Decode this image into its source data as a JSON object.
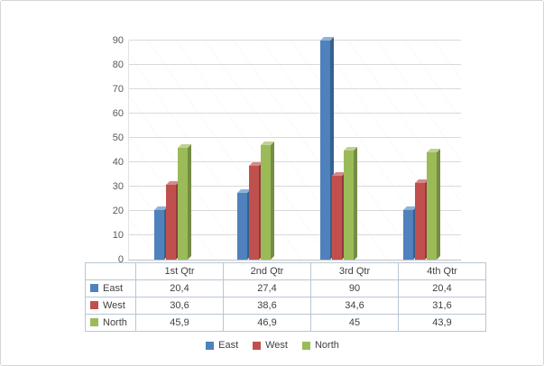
{
  "chart_data": {
    "type": "bar",
    "title": "",
    "xlabel": "",
    "ylabel": "",
    "categories": [
      "1st Qtr",
      "2nd Qtr",
      "3rd Qtr",
      "4th Qtr"
    ],
    "series": [
      {
        "name": "East",
        "color": "#4f81bd",
        "color_dark": "#36618f",
        "color_light": "#8fb2da",
        "values": [
          20.4,
          27.4,
          90,
          20.4
        ],
        "labels": [
          "20,4",
          "27,4",
          "90",
          "20,4"
        ]
      },
      {
        "name": "West",
        "color": "#c0504d",
        "color_dark": "#8f3b39",
        "color_light": "#d58a88",
        "values": [
          30.6,
          38.6,
          34.6,
          31.6
        ],
        "labels": [
          "30,6",
          "38,6",
          "34,6",
          "31,6"
        ]
      },
      {
        "name": "North",
        "color": "#9bbb59",
        "color_dark": "#748c43",
        "color_light": "#bdd292",
        "values": [
          45.9,
          46.9,
          45,
          43.9
        ],
        "labels": [
          "45,9",
          "46,9",
          "45",
          "43,9"
        ]
      }
    ],
    "ylim": [
      0,
      90
    ],
    "ytick_step": 10,
    "ytick_labels": [
      "0",
      "10",
      "20",
      "30",
      "40",
      "50",
      "60",
      "70",
      "80",
      "90"
    ],
    "grid": true,
    "legend_position": "bottom",
    "legend": [
      "East",
      "West",
      "North"
    ],
    "has_data_table": true
  }
}
